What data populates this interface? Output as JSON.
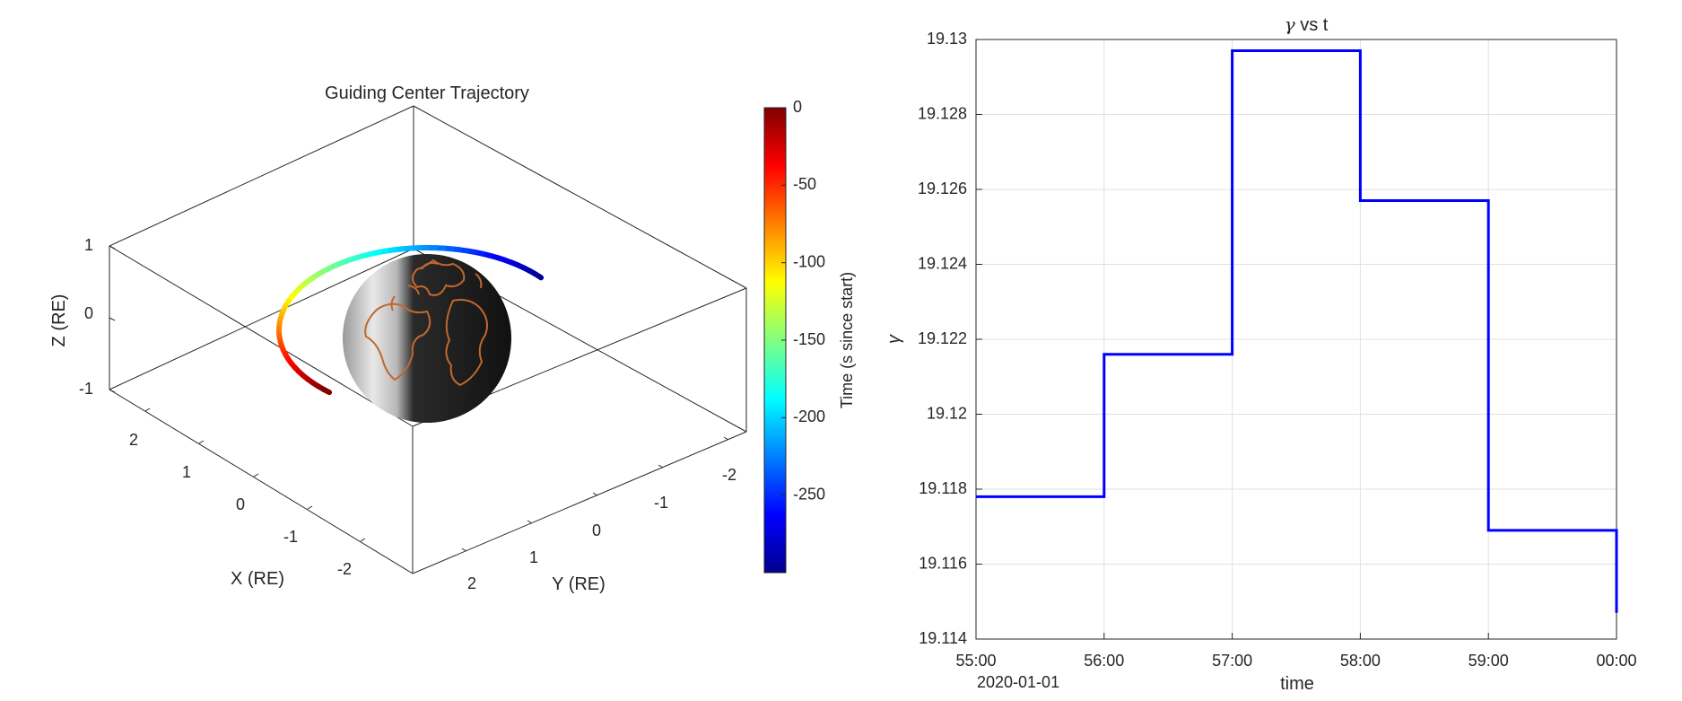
{
  "chart_data": [
    {
      "type": "scatter",
      "subtype": "3d-trajectory",
      "title": "Guiding Center Trajectory",
      "xlabel": "X (RE)",
      "ylabel": "Y (RE)",
      "zlabel": "Z (RE)",
      "x_ticks": [
        "2",
        "1",
        "0",
        "-1",
        "-2"
      ],
      "y_ticks": [
        "2",
        "1",
        "0",
        "-1",
        "-2"
      ],
      "z_ticks": [
        "1",
        "0",
        "-1"
      ],
      "colorbar": {
        "label": "Time (s since start)",
        "range": [
          -300,
          0
        ],
        "ticks": [
          "0",
          "-50",
          "-100",
          "-150",
          "-200",
          "-250"
        ],
        "colormap": "jet"
      },
      "earth": {
        "body_color": "#1c1c1c",
        "coastline_color": "#c0682c"
      }
    },
    {
      "type": "line",
      "title": "γ vs t",
      "title_parts": {
        "symbol": "γ",
        "rest": " vs t"
      },
      "xlabel": "time",
      "ylabel": "γ",
      "x_ticks": [
        "55:00",
        "56:00",
        "57:00",
        "58:00",
        "59:00",
        "00:00"
      ],
      "x_date_label": "2020-01-01",
      "y_ticks": [
        "19.13",
        "19.128",
        "19.126",
        "19.124",
        "19.122",
        "19.12",
        "19.118",
        "19.116",
        "19.114"
      ],
      "ylim": [
        19.114,
        19.13
      ],
      "grid": true,
      "color": "#0000ff",
      "series": [
        {
          "x": [
            "55:00",
            "56:00",
            "56:00",
            "57:00",
            "57:00",
            "58:00",
            "58:00",
            "59:00",
            "59:00",
            "00:00",
            "00:00"
          ],
          "y": [
            19.1178,
            19.1178,
            19.1216,
            19.1216,
            19.1297,
            19.1297,
            19.1257,
            19.1257,
            19.1169,
            19.1169,
            19.1147
          ]
        }
      ]
    }
  ]
}
